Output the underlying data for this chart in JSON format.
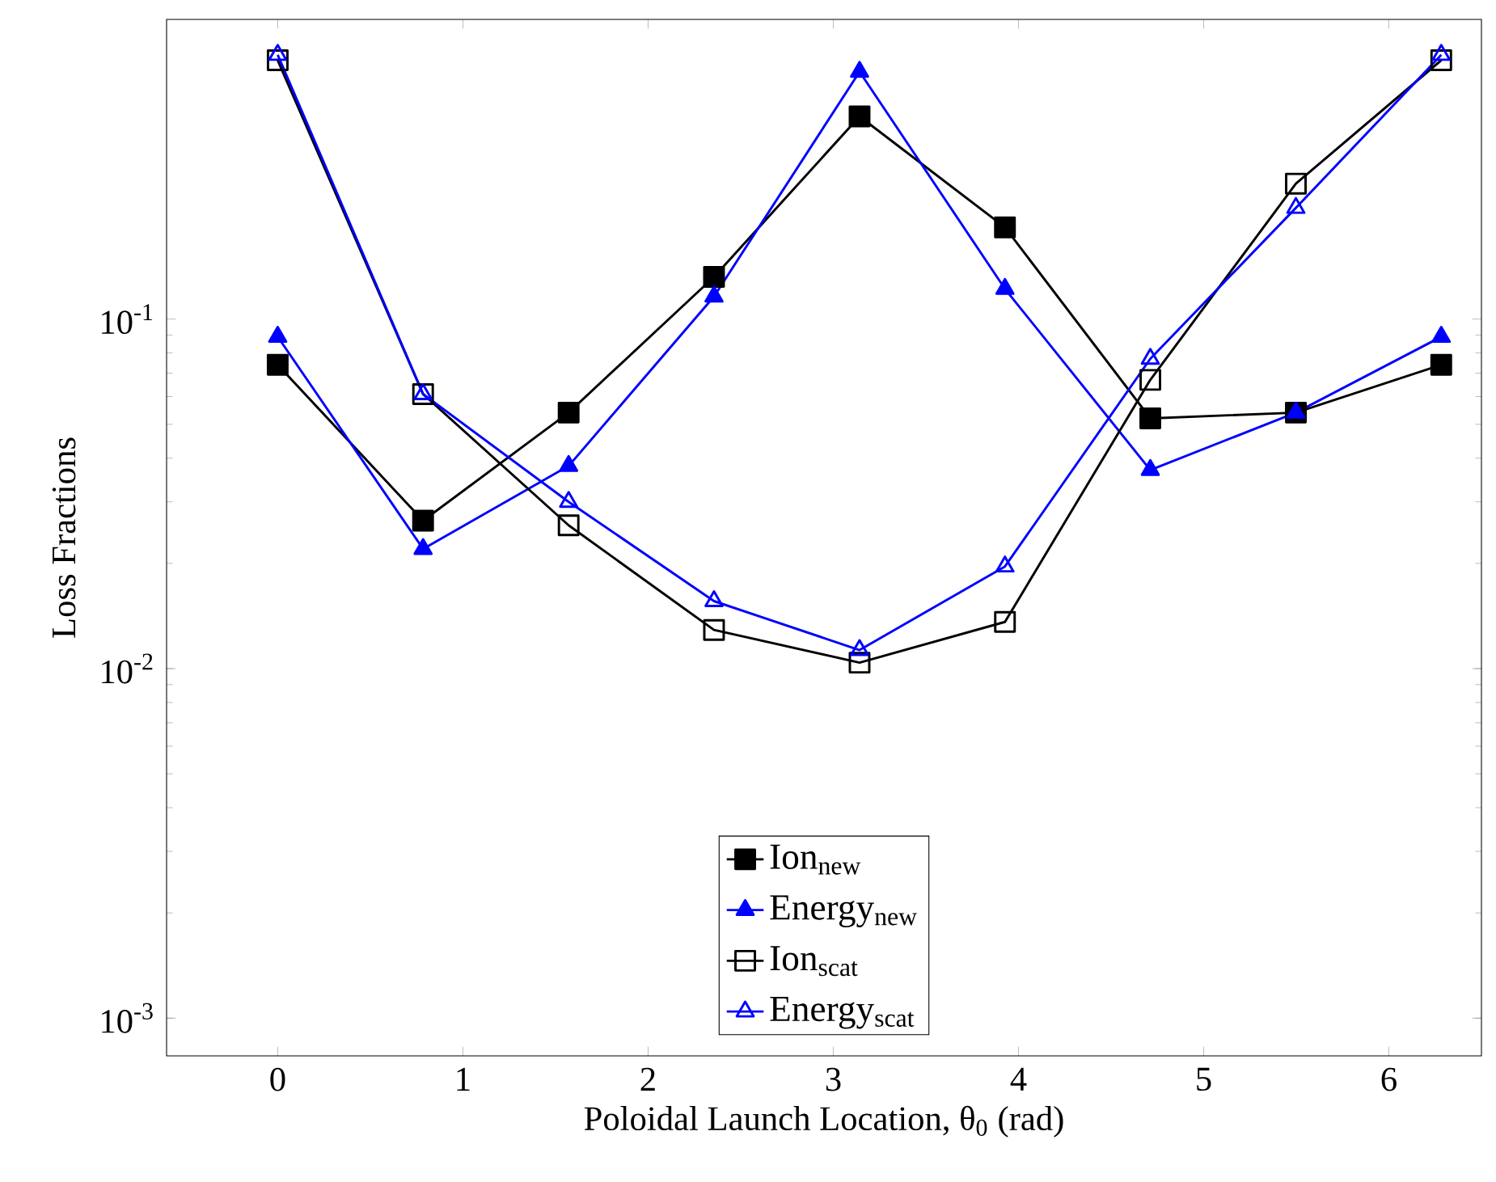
{
  "chart_data": {
    "type": "line",
    "xlabel": "Poloidal Launch Location, θ$_{0}$ (rad)",
    "ylabel": "Loss Fractions",
    "x": [
      0,
      0.785,
      1.571,
      2.356,
      3.142,
      3.927,
      4.712,
      5.498,
      6.283
    ],
    "series": [
      {
        "name": "Ion$_{new}$",
        "color": "#000000",
        "marker": "square",
        "values": [
          0.074,
          0.0265,
          0.054,
          0.132,
          0.38,
          0.183,
          0.052,
          0.054,
          0.074
        ]
      },
      {
        "name": "Energy$_{new}$",
        "color": "#0000ff",
        "marker": "triangle",
        "values": [
          0.089,
          0.022,
          0.038,
          0.116,
          0.51,
          0.122,
          0.037,
          0.054,
          0.089
        ]
      },
      {
        "name": "Ion$_{scat}$",
        "color": "#000000",
        "marker": "square",
        "values": [
          0.55,
          0.061,
          0.0257,
          0.0129,
          0.0104,
          0.0136,
          0.067,
          0.244,
          0.55
        ]
      },
      {
        "name": "Energy$_{scat}$",
        "color": "#0000ff",
        "marker": "triangle",
        "values": [
          0.57,
          0.061,
          0.03,
          0.0156,
          0.0113,
          0.0196,
          0.077,
          0.208,
          0.57
        ]
      }
    ],
    "xlim": [
      -0.6,
      6.5
    ],
    "ylim": [
      0.00078,
      0.72
    ],
    "xticks": [
      0,
      1,
      2,
      3,
      4,
      5,
      6
    ],
    "yticks": [
      {
        "value": 0.001,
        "label": "10$^{-3}$"
      },
      {
        "value": 0.01,
        "label": "10$^{-2}$"
      },
      {
        "value": 0.1,
        "label": "10$^{-1}$"
      }
    ],
    "log": "y",
    "grid": false,
    "legend": "bottom",
    "line_style": "solid"
  }
}
